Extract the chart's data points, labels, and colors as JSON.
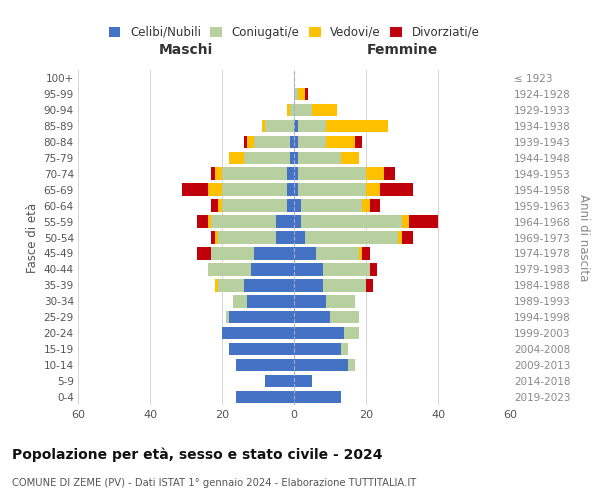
{
  "age_groups": [
    "0-4",
    "5-9",
    "10-14",
    "15-19",
    "20-24",
    "25-29",
    "30-34",
    "35-39",
    "40-44",
    "45-49",
    "50-54",
    "55-59",
    "60-64",
    "65-69",
    "70-74",
    "75-79",
    "80-84",
    "85-89",
    "90-94",
    "95-99",
    "100+"
  ],
  "birth_years": [
    "2019-2023",
    "2014-2018",
    "2009-2013",
    "2004-2008",
    "1999-2003",
    "1994-1998",
    "1989-1993",
    "1984-1988",
    "1979-1983",
    "1974-1978",
    "1969-1973",
    "1964-1968",
    "1959-1963",
    "1954-1958",
    "1949-1953",
    "1944-1948",
    "1939-1943",
    "1934-1938",
    "1929-1933",
    "1924-1928",
    "≤ 1923"
  ],
  "males": {
    "celibi": [
      16,
      8,
      16,
      18,
      20,
      18,
      13,
      14,
      12,
      11,
      5,
      5,
      2,
      2,
      2,
      1,
      1,
      0,
      0,
      0,
      0
    ],
    "coniugati": [
      0,
      0,
      0,
      0,
      0,
      1,
      4,
      7,
      12,
      12,
      16,
      18,
      18,
      18,
      18,
      13,
      10,
      8,
      1,
      0,
      0
    ],
    "vedovi": [
      0,
      0,
      0,
      0,
      0,
      0,
      0,
      1,
      0,
      0,
      1,
      1,
      1,
      4,
      2,
      4,
      2,
      1,
      1,
      0,
      0
    ],
    "divorziati": [
      0,
      0,
      0,
      0,
      0,
      0,
      0,
      0,
      0,
      4,
      1,
      3,
      2,
      7,
      1,
      0,
      1,
      0,
      0,
      0,
      0
    ]
  },
  "females": {
    "nubili": [
      13,
      5,
      15,
      13,
      14,
      10,
      9,
      8,
      8,
      6,
      3,
      2,
      2,
      1,
      1,
      1,
      1,
      1,
      0,
      0,
      0
    ],
    "coniugate": [
      0,
      0,
      2,
      2,
      4,
      8,
      8,
      12,
      13,
      12,
      26,
      28,
      17,
      19,
      19,
      12,
      8,
      8,
      5,
      1,
      0
    ],
    "vedove": [
      0,
      0,
      0,
      0,
      0,
      0,
      0,
      0,
      0,
      1,
      1,
      2,
      2,
      4,
      5,
      5,
      8,
      17,
      7,
      2,
      0
    ],
    "divorziate": [
      0,
      0,
      0,
      0,
      0,
      0,
      0,
      2,
      2,
      2,
      3,
      8,
      3,
      9,
      3,
      0,
      2,
      0,
      0,
      1,
      0
    ]
  },
  "colors": {
    "celibi_nubili": "#4472c4",
    "coniugati": "#b8cfa0",
    "vedovi": "#ffc000",
    "divorziati": "#c0000b"
  },
  "title": "Popolazione per età, sesso e stato civile - 2024",
  "subtitle": "COMUNE DI ZEME (PV) - Dati ISTAT 1° gennaio 2024 - Elaborazione TUTTITALIA.IT",
  "xlabel_left": "Maschi",
  "xlabel_right": "Femmine",
  "ylabel_left": "Fasce di età",
  "ylabel_right": "Anni di nascita",
  "xlim": 60,
  "legend_labels": [
    "Celibi/Nubili",
    "Coniugati/e",
    "Vedovi/e",
    "Divorziati/e"
  ],
  "bg_color": "#ffffff",
  "grid_color": "#cccccc"
}
